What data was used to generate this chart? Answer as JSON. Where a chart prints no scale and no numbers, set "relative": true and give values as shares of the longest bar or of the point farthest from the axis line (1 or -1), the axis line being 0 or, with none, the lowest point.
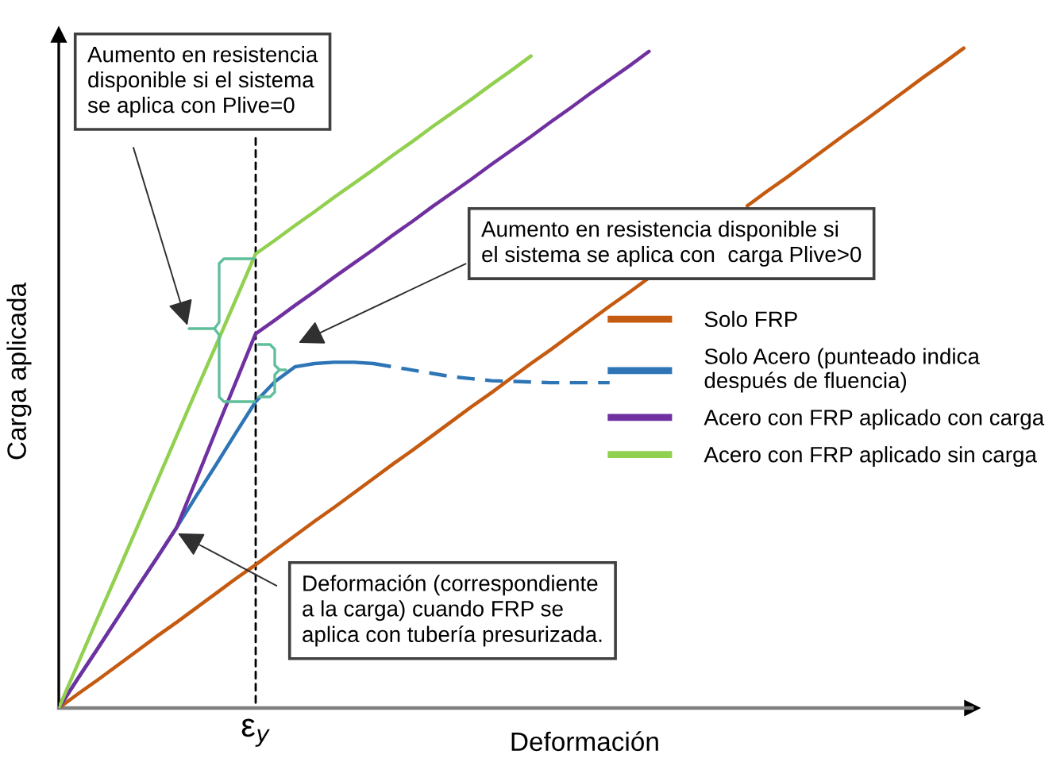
{
  "chart_data": {
    "type": "line",
    "relative": true,
    "xlabel": "Deformación",
    "ylabel": "Carga aplicada",
    "legend": "right",
    "marker": "none",
    "line_style": "solid",
    "categories": [
      null,
      null,
      null,
      null,
      null,
      null,
      null,
      null,
      null,
      null,
      null,
      null,
      null,
      null,
      null,
      null,
      null,
      null,
      null,
      null,
      null,
      null,
      null,
      null,
      null,
      null,
      null,
      null,
      null,
      null,
      null,
      null,
      null,
      null,
      null,
      null,
      null,
      null,
      null,
      null,
      null,
      null,
      null,
      null,
      null,
      null,
      null
    ],
    "series": [
      {
        "name": "Solo FRP",
        "color": "#c55a11",
        "values": [
          0,
          0.022,
          0.043,
          0.065,
          0.087,
          0.109,
          0.13,
          0.152,
          0.174,
          0.196,
          0.217,
          0.239,
          0.261,
          0.283,
          0.304,
          0.326,
          0.348,
          0.37,
          0.391,
          0.413,
          0.435,
          0.457,
          0.478,
          0.5,
          0.522,
          0.543,
          0.565,
          0.587,
          0.609,
          0.63,
          0.652,
          null,
          null,
          null,
          null,
          0.761,
          0.783,
          0.804,
          0.826,
          0.848,
          0.87,
          0.891,
          0.913,
          0.935,
          0.957,
          0.978,
          1.0
        ]
      },
      {
        "name": "Solo Acero (punteado indica\ndespués de fluencia)",
        "color": "#2e75b6",
        "values": [
          0,
          0.046,
          0.091,
          0.137,
          0.183,
          0.228,
          0.274,
          0.322,
          0.369,
          0.417,
          0.464,
          0.495,
          0.517,
          0.522,
          0.524,
          0.524,
          0.522,
          null,
          null,
          null,
          null,
          null,
          null,
          null,
          null,
          null,
          null,
          null,
          null,
          null,
          null,
          null,
          null,
          null,
          null,
          null,
          null,
          null,
          null,
          null,
          null,
          null,
          null,
          null,
          null,
          null,
          null
        ]
      },
      {
        "color": "#2e75b6",
        "line_style": "dashed",
        "values": [
          null,
          null,
          null,
          null,
          null,
          null,
          null,
          null,
          null,
          null,
          null,
          null,
          null,
          null,
          null,
          null,
          0.522,
          0.517,
          0.512,
          0.507,
          0.502,
          0.499,
          0.496,
          0.495,
          0.494,
          0.493,
          0.493,
          0.493,
          0.493,
          null,
          null,
          null,
          null,
          null,
          null,
          null,
          null,
          null,
          null,
          null,
          null,
          null,
          null,
          null,
          null,
          null,
          null
        ]
      },
      {
        "name": "Acero con FRP aplicado con carga",
        "color": "#7030a0",
        "values": [
          0,
          0.046,
          0.091,
          0.137,
          0.183,
          0.228,
          0.274,
          0.347,
          0.421,
          0.494,
          0.567,
          0.588,
          0.61,
          0.631,
          0.653,
          0.674,
          0.695,
          0.717,
          0.738,
          0.76,
          0.781,
          0.802,
          0.824,
          0.845,
          0.866,
          0.888,
          0.909,
          0.931,
          0.952,
          0.973,
          0.995,
          null,
          null,
          null,
          null,
          null,
          null,
          null,
          null,
          null,
          null,
          null,
          null,
          null,
          null,
          null,
          null
        ]
      },
      {
        "name": "Acero con FRP aplicado sin carga",
        "color": "#92d050",
        "values": [
          0,
          0.069,
          0.138,
          0.206,
          0.275,
          0.344,
          0.413,
          0.482,
          0.55,
          0.619,
          0.688,
          0.709,
          0.731,
          0.752,
          0.774,
          0.795,
          0.816,
          0.838,
          0.859,
          0.881,
          0.902,
          0.923,
          0.945,
          0.966,
          0.988,
          null,
          null,
          null,
          null,
          null,
          null,
          null,
          null,
          null,
          null,
          null,
          null,
          null,
          null,
          null,
          null,
          null,
          null,
          null,
          null,
          null,
          null
        ]
      }
    ],
    "annotations": [
      "Aumento en resistencia\ndisponible si el sistema\nse aplica con Plive=0",
      "Aumento en resistencia disponible si\nel sistema se aplica con  carga Plive>0",
      "Deformación (correspondiente\na la carga) cuando FRP se\naplica con tubería presurizada.",
      "ε$_{y}$"
    ]
  }
}
